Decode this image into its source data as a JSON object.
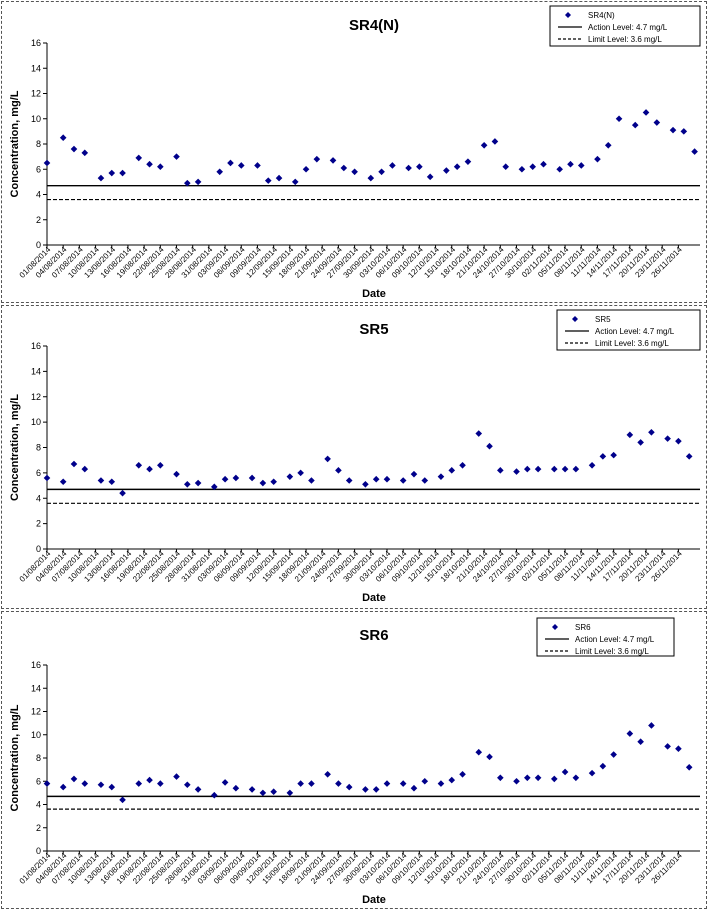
{
  "charts": [
    {
      "type": "scatter",
      "title": "SR4(N)",
      "xlabel": "Date",
      "ylabel": "Concentration, mg/L",
      "ylim": [
        0,
        16
      ],
      "yticks": [
        "0",
        "2",
        "4",
        "6",
        "8",
        "10",
        "12",
        "14",
        "16"
      ],
      "legend": {
        "placement": "top-right",
        "series": "SR4(N)",
        "action": "Action Level: 4.7 mg/L",
        "limit": "Limit Level: 3.6 mg/L"
      },
      "action_level": 4.7,
      "limit_level": 3.6,
      "x_labels": [
        "01/08/2014",
        "04/08/2014",
        "07/08/2014",
        "10/08/2014",
        "13/08/2014",
        "16/08/2014",
        "19/08/2014",
        "22/08/2014",
        "25/08/2014",
        "28/08/2014",
        "31/08/2014",
        "03/09/2014",
        "06/09/2014",
        "09/09/2014",
        "12/09/2014",
        "15/09/2014",
        "18/09/2014",
        "21/09/2014",
        "24/09/2014",
        "27/09/2014",
        "30/09/2014",
        "03/10/2014",
        "06/10/2014",
        "09/10/2014",
        "12/10/2014",
        "15/10/2014",
        "18/10/2014",
        "21/10/2014",
        "24/10/2014",
        "27/10/2014",
        "30/10/2014",
        "02/11/2014",
        "05/11/2014",
        "08/11/2014",
        "11/11/2014",
        "14/11/2014",
        "17/11/2014",
        "20/11/2014",
        "23/11/2014",
        "26/11/2014"
      ],
      "x_range": [
        "01/08/2014",
        "30/11/2014"
      ],
      "points": [
        {
          "x": "01/08/2014",
          "y": 6.5
        },
        {
          "x": "04/08/2014",
          "y": 8.5
        },
        {
          "x": "06/08/2014",
          "y": 7.6
        },
        {
          "x": "08/08/2014",
          "y": 7.3
        },
        {
          "x": "11/08/2014",
          "y": 5.3
        },
        {
          "x": "13/08/2014",
          "y": 5.7
        },
        {
          "x": "15/08/2014",
          "y": 5.7
        },
        {
          "x": "18/08/2014",
          "y": 6.9
        },
        {
          "x": "20/08/2014",
          "y": 6.4
        },
        {
          "x": "22/08/2014",
          "y": 6.2
        },
        {
          "x": "25/08/2014",
          "y": 7.0
        },
        {
          "x": "27/08/2014",
          "y": 4.9
        },
        {
          "x": "29/08/2014",
          "y": 5.0
        },
        {
          "x": "02/09/2014",
          "y": 5.8
        },
        {
          "x": "04/09/2014",
          "y": 6.5
        },
        {
          "x": "06/09/2014",
          "y": 6.3
        },
        {
          "x": "09/09/2014",
          "y": 6.3
        },
        {
          "x": "11/09/2014",
          "y": 5.1
        },
        {
          "x": "13/09/2014",
          "y": 5.3
        },
        {
          "x": "16/09/2014",
          "y": 5.0
        },
        {
          "x": "18/09/2014",
          "y": 6.0
        },
        {
          "x": "20/09/2014",
          "y": 6.8
        },
        {
          "x": "23/09/2014",
          "y": 6.7
        },
        {
          "x": "25/09/2014",
          "y": 6.1
        },
        {
          "x": "27/09/2014",
          "y": 5.8
        },
        {
          "x": "30/09/2014",
          "y": 5.3
        },
        {
          "x": "02/10/2014",
          "y": 5.8
        },
        {
          "x": "04/10/2014",
          "y": 6.3
        },
        {
          "x": "07/10/2014",
          "y": 6.1
        },
        {
          "x": "09/10/2014",
          "y": 6.2
        },
        {
          "x": "11/10/2014",
          "y": 5.4
        },
        {
          "x": "14/10/2014",
          "y": 5.9
        },
        {
          "x": "16/10/2014",
          "y": 6.2
        },
        {
          "x": "18/10/2014",
          "y": 6.6
        },
        {
          "x": "21/10/2014",
          "y": 7.9
        },
        {
          "x": "23/10/2014",
          "y": 8.2
        },
        {
          "x": "25/10/2014",
          "y": 6.2
        },
        {
          "x": "28/10/2014",
          "y": 6.0
        },
        {
          "x": "30/10/2014",
          "y": 6.2
        },
        {
          "x": "01/11/2014",
          "y": 6.4
        },
        {
          "x": "04/11/2014",
          "y": 6.0
        },
        {
          "x": "06/11/2014",
          "y": 6.4
        },
        {
          "x": "08/11/2014",
          "y": 6.3
        },
        {
          "x": "11/11/2014",
          "y": 6.8
        },
        {
          "x": "13/11/2014",
          "y": 7.9
        },
        {
          "x": "15/11/2014",
          "y": 10.0
        },
        {
          "x": "18/11/2014",
          "y": 9.5
        },
        {
          "x": "20/11/2014",
          "y": 10.5
        },
        {
          "x": "22/11/2014",
          "y": 9.7
        },
        {
          "x": "25/11/2014",
          "y": 9.1
        },
        {
          "x": "27/11/2014",
          "y": 9.0
        },
        {
          "x": "29/11/2014",
          "y": 7.4
        }
      ]
    },
    {
      "type": "scatter",
      "title": "SR5",
      "xlabel": "Date",
      "ylabel": "Concentration, mg/L",
      "ylim": [
        0,
        16
      ],
      "yticks": [
        "0",
        "2",
        "4",
        "6",
        "8",
        "10",
        "12",
        "14",
        "16"
      ],
      "legend": {
        "placement": "top-right",
        "series": "SR5",
        "action": "Action Level: 4.7 mg/L",
        "limit": "Limit Level: 3.6 mg/L"
      },
      "action_level": 4.7,
      "limit_level": 3.6,
      "x_labels": [
        "01/08/2014",
        "04/08/2014",
        "07/08/2014",
        "10/08/2014",
        "13/08/2014",
        "16/08/2014",
        "19/08/2014",
        "22/08/2014",
        "25/08/2014",
        "28/08/2014",
        "31/08/2014",
        "03/09/2014",
        "06/09/2014",
        "09/09/2014",
        "12/09/2014",
        "15/09/2014",
        "18/09/2014",
        "21/09/2014",
        "24/09/2014",
        "27/09/2014",
        "30/09/2014",
        "03/10/2014",
        "06/10/2014",
        "09/10/2014",
        "12/10/2014",
        "15/10/2014",
        "18/10/2014",
        "21/10/2014",
        "24/10/2014",
        "27/10/2014",
        "30/10/2014",
        "02/11/2014",
        "05/11/2014",
        "08/11/2014",
        "11/11/2014",
        "14/11/2014",
        "17/11/2014",
        "20/11/2014",
        "23/11/2014",
        "26/11/2014"
      ],
      "x_range": [
        "01/08/2014",
        "30/11/2014"
      ],
      "points": [
        {
          "x": "01/08/2014",
          "y": 5.6
        },
        {
          "x": "04/08/2014",
          "y": 5.3
        },
        {
          "x": "06/08/2014",
          "y": 6.7
        },
        {
          "x": "08/08/2014",
          "y": 6.3
        },
        {
          "x": "11/08/2014",
          "y": 5.4
        },
        {
          "x": "13/08/2014",
          "y": 5.3
        },
        {
          "x": "15/08/2014",
          "y": 4.4
        },
        {
          "x": "18/08/2014",
          "y": 6.6
        },
        {
          "x": "20/08/2014",
          "y": 6.3
        },
        {
          "x": "22/08/2014",
          "y": 6.6
        },
        {
          "x": "25/08/2014",
          "y": 5.9
        },
        {
          "x": "27/08/2014",
          "y": 5.1
        },
        {
          "x": "29/08/2014",
          "y": 5.2
        },
        {
          "x": "01/09/2014",
          "y": 4.9
        },
        {
          "x": "03/09/2014",
          "y": 5.5
        },
        {
          "x": "05/09/2014",
          "y": 5.6
        },
        {
          "x": "08/09/2014",
          "y": 5.6
        },
        {
          "x": "10/09/2014",
          "y": 5.2
        },
        {
          "x": "12/09/2014",
          "y": 5.3
        },
        {
          "x": "15/09/2014",
          "y": 5.7
        },
        {
          "x": "17/09/2014",
          "y": 6.0
        },
        {
          "x": "19/09/2014",
          "y": 5.4
        },
        {
          "x": "22/09/2014",
          "y": 7.1
        },
        {
          "x": "24/09/2014",
          "y": 6.2
        },
        {
          "x": "26/09/2014",
          "y": 5.4
        },
        {
          "x": "29/09/2014",
          "y": 5.1
        },
        {
          "x": "01/10/2014",
          "y": 5.5
        },
        {
          "x": "03/10/2014",
          "y": 5.5
        },
        {
          "x": "06/10/2014",
          "y": 5.4
        },
        {
          "x": "08/10/2014",
          "y": 5.9
        },
        {
          "x": "10/10/2014",
          "y": 5.4
        },
        {
          "x": "13/10/2014",
          "y": 5.7
        },
        {
          "x": "15/10/2014",
          "y": 6.2
        },
        {
          "x": "17/10/2014",
          "y": 6.6
        },
        {
          "x": "20/10/2014",
          "y": 9.1
        },
        {
          "x": "22/10/2014",
          "y": 8.1
        },
        {
          "x": "24/10/2014",
          "y": 6.2
        },
        {
          "x": "27/10/2014",
          "y": 6.1
        },
        {
          "x": "29/10/2014",
          "y": 6.3
        },
        {
          "x": "31/10/2014",
          "y": 6.3
        },
        {
          "x": "03/11/2014",
          "y": 6.3
        },
        {
          "x": "05/11/2014",
          "y": 6.3
        },
        {
          "x": "07/11/2014",
          "y": 6.3
        },
        {
          "x": "10/11/2014",
          "y": 6.6
        },
        {
          "x": "12/11/2014",
          "y": 7.3
        },
        {
          "x": "14/11/2014",
          "y": 7.4
        },
        {
          "x": "17/11/2014",
          "y": 9.0
        },
        {
          "x": "19/11/2014",
          "y": 8.4
        },
        {
          "x": "21/11/2014",
          "y": 9.2
        },
        {
          "x": "24/11/2014",
          "y": 8.7
        },
        {
          "x": "26/11/2014",
          "y": 8.5
        },
        {
          "x": "28/11/2014",
          "y": 7.3
        }
      ]
    },
    {
      "type": "scatter",
      "title": "SR6",
      "xlabel": "Date",
      "ylabel": "Concentration, mg/L",
      "ylim": [
        0,
        16
      ],
      "yticks": [
        "0",
        "2",
        "4",
        "6",
        "8",
        "10",
        "12",
        "14",
        "16"
      ],
      "legend": {
        "placement": "top-right",
        "series": "SR6",
        "action": "Action Level: 4.7 mg/L",
        "limit": "Limit Level: 3.6 mg/L"
      },
      "action_level": 4.7,
      "limit_level": 3.6,
      "x_labels": [
        "01/08/2014",
        "04/08/2014",
        "07/08/2014",
        "10/08/2014",
        "13/08/2014",
        "16/08/2014",
        "19/08/2014",
        "22/08/2014",
        "25/08/2014",
        "28/08/2014",
        "31/08/2014",
        "03/09/2014",
        "06/09/2014",
        "09/09/2014",
        "12/09/2014",
        "15/09/2014",
        "18/09/2014",
        "21/09/2014",
        "24/09/2014",
        "27/09/2014",
        "30/09/2014",
        "03/10/2014",
        "06/10/2014",
        "09/10/2014",
        "12/10/2014",
        "15/10/2014",
        "18/10/2014",
        "21/10/2014",
        "24/10/2014",
        "27/10/2014",
        "30/10/2014",
        "02/11/2014",
        "05/11/2014",
        "08/11/2014",
        "11/11/2014",
        "14/11/2014",
        "17/11/2014",
        "20/11/2014",
        "23/11/2014",
        "26/11/2014"
      ],
      "x_range": [
        "01/08/2014",
        "30/11/2014"
      ],
      "points": [
        {
          "x": "01/08/2014",
          "y": 5.8
        },
        {
          "x": "04/08/2014",
          "y": 5.5
        },
        {
          "x": "06/08/2014",
          "y": 6.2
        },
        {
          "x": "08/08/2014",
          "y": 5.8
        },
        {
          "x": "11/08/2014",
          "y": 5.7
        },
        {
          "x": "13/08/2014",
          "y": 5.5
        },
        {
          "x": "15/08/2014",
          "y": 4.4
        },
        {
          "x": "18/08/2014",
          "y": 5.8
        },
        {
          "x": "20/08/2014",
          "y": 6.1
        },
        {
          "x": "22/08/2014",
          "y": 5.8
        },
        {
          "x": "25/08/2014",
          "y": 6.4
        },
        {
          "x": "27/08/2014",
          "y": 5.7
        },
        {
          "x": "29/08/2014",
          "y": 5.3
        },
        {
          "x": "01/09/2014",
          "y": 4.8
        },
        {
          "x": "03/09/2014",
          "y": 5.9
        },
        {
          "x": "05/09/2014",
          "y": 5.4
        },
        {
          "x": "08/09/2014",
          "y": 5.3
        },
        {
          "x": "10/09/2014",
          "y": 5.0
        },
        {
          "x": "12/09/2014",
          "y": 5.1
        },
        {
          "x": "15/09/2014",
          "y": 5.0
        },
        {
          "x": "17/09/2014",
          "y": 5.8
        },
        {
          "x": "19/09/2014",
          "y": 5.8
        },
        {
          "x": "22/09/2014",
          "y": 6.6
        },
        {
          "x": "24/09/2014",
          "y": 5.8
        },
        {
          "x": "26/09/2014",
          "y": 5.5
        },
        {
          "x": "29/09/2014",
          "y": 5.3
        },
        {
          "x": "01/10/2014",
          "y": 5.3
        },
        {
          "x": "03/10/2014",
          "y": 5.8
        },
        {
          "x": "06/10/2014",
          "y": 5.8
        },
        {
          "x": "08/10/2014",
          "y": 5.4
        },
        {
          "x": "10/10/2014",
          "y": 6.0
        },
        {
          "x": "13/10/2014",
          "y": 5.8
        },
        {
          "x": "15/10/2014",
          "y": 6.1
        },
        {
          "x": "17/10/2014",
          "y": 6.6
        },
        {
          "x": "20/10/2014",
          "y": 8.5
        },
        {
          "x": "22/10/2014",
          "y": 8.1
        },
        {
          "x": "24/10/2014",
          "y": 6.3
        },
        {
          "x": "27/10/2014",
          "y": 6.0
        },
        {
          "x": "29/10/2014",
          "y": 6.3
        },
        {
          "x": "31/10/2014",
          "y": 6.3
        },
        {
          "x": "03/11/2014",
          "y": 6.2
        },
        {
          "x": "05/11/2014",
          "y": 6.8
        },
        {
          "x": "07/11/2014",
          "y": 6.3
        },
        {
          "x": "10/11/2014",
          "y": 6.7
        },
        {
          "x": "12/11/2014",
          "y": 7.3
        },
        {
          "x": "14/11/2014",
          "y": 8.3
        },
        {
          "x": "17/11/2014",
          "y": 10.1
        },
        {
          "x": "19/11/2014",
          "y": 9.4
        },
        {
          "x": "21/11/2014",
          "y": 10.8
        },
        {
          "x": "24/11/2014",
          "y": 9.0
        },
        {
          "x": "26/11/2014",
          "y": 8.8
        },
        {
          "x": "28/11/2014",
          "y": 7.2
        }
      ]
    }
  ],
  "colors": {
    "marker": "#00008b",
    "action_line": "#000000",
    "limit_line": "#000000"
  }
}
